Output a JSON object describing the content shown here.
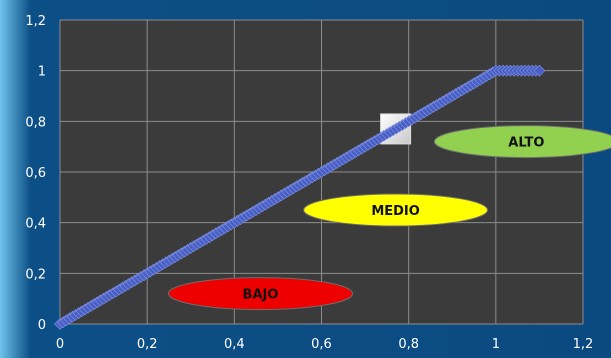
{
  "chart_data": {
    "type": "line",
    "title": "",
    "xlabel": "",
    "ylabel": "",
    "xlim": [
      0,
      1.2
    ],
    "ylim": [
      0,
      1.2
    ],
    "grid": true,
    "x_ticks": [
      "0",
      "0,2",
      "0,4",
      "0,6",
      "0,8",
      "1",
      "1,2"
    ],
    "y_ticks": [
      "0",
      "0,2",
      "0,4",
      "0,6",
      "0,8",
      "1",
      "1,2"
    ],
    "series": [
      {
        "marker": "diamond",
        "x": [
          0,
          0.1,
          0.2,
          0.3,
          0.4,
          0.5,
          0.6,
          0.7,
          0.8,
          0.9,
          1.0,
          1.05,
          1.1
        ],
        "y": [
          0,
          0.1,
          0.2,
          0.3,
          0.4,
          0.5,
          0.6,
          0.7,
          0.8,
          0.9,
          1.0,
          1.0,
          1.0
        ]
      }
    ],
    "annotations": [
      {
        "text": "BAJO",
        "x": 0.46,
        "y": 0.12,
        "color": "#ee0000"
      },
      {
        "text": "MEDIO",
        "x": 0.77,
        "y": 0.45,
        "color": "#ffff00"
      },
      {
        "text": "ALTO",
        "x": 1.07,
        "y": 0.72,
        "color": "#92d050"
      }
    ],
    "marker_box": {
      "x": 0.77,
      "y": 0.77,
      "color": "#ffffff"
    },
    "colors": {
      "background": "#0c4f86",
      "plot_area": "#3b3b3b",
      "grid": "#8c8c8c",
      "line": "#4a5fc4",
      "tick_text": "#ffffff"
    }
  }
}
